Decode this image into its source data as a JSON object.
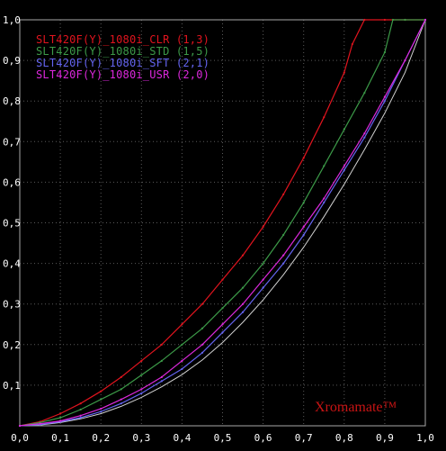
{
  "chart_data": {
    "type": "line",
    "title": "",
    "xlabel": "",
    "ylabel": "",
    "xlim": [
      0,
      1
    ],
    "ylim": [
      0,
      1
    ],
    "grid": true,
    "legend_placement": "top-left",
    "x_ticks": [
      "0,0",
      "0,1",
      "0,2",
      "0,3",
      "0,4",
      "0,5",
      "0,6",
      "0,7",
      "0,8",
      "0,9",
      "1,0"
    ],
    "y_ticks": [
      "0,1",
      "0,2",
      "0,3",
      "0,4",
      "0,5",
      "0,6",
      "0,7",
      "0,8",
      "0,9",
      "1,0"
    ],
    "series": [
      {
        "name": "SLT420F(Y)_1080i_CLR (1,3)",
        "color": "#e0141e",
        "x": [
          0,
          0.05,
          0.1,
          0.15,
          0.2,
          0.25,
          0.3,
          0.35,
          0.4,
          0.45,
          0.5,
          0.55,
          0.6,
          0.65,
          0.7,
          0.75,
          0.8,
          0.82,
          0.85,
          0.9,
          0.95,
          1.0
        ],
        "y": [
          0,
          0.01,
          0.03,
          0.055,
          0.085,
          0.12,
          0.16,
          0.2,
          0.25,
          0.3,
          0.36,
          0.42,
          0.49,
          0.57,
          0.66,
          0.76,
          0.87,
          0.94,
          1.0,
          1.0,
          1.0,
          1.0
        ]
      },
      {
        "name": "SLT420F(Y)_1080i_STD (1,5)",
        "color": "#3c9a48",
        "x": [
          0,
          0.05,
          0.1,
          0.15,
          0.2,
          0.25,
          0.3,
          0.35,
          0.4,
          0.45,
          0.5,
          0.55,
          0.6,
          0.65,
          0.7,
          0.75,
          0.8,
          0.85,
          0.9,
          0.92,
          0.95,
          1.0
        ],
        "y": [
          0,
          0.008,
          0.02,
          0.04,
          0.065,
          0.09,
          0.125,
          0.16,
          0.2,
          0.24,
          0.29,
          0.34,
          0.4,
          0.47,
          0.55,
          0.64,
          0.73,
          0.82,
          0.92,
          1.0,
          1.0,
          1.0
        ]
      },
      {
        "name": "SLT420F(Y)_1080i_SFT (2,1)",
        "color": "#6464f0",
        "x": [
          0,
          0.05,
          0.1,
          0.15,
          0.2,
          0.25,
          0.3,
          0.35,
          0.4,
          0.45,
          0.5,
          0.55,
          0.6,
          0.65,
          0.7,
          0.75,
          0.8,
          0.85,
          0.9,
          0.95,
          1.0
        ],
        "y": [
          0,
          0.003,
          0.01,
          0.02,
          0.035,
          0.055,
          0.08,
          0.11,
          0.14,
          0.18,
          0.23,
          0.28,
          0.34,
          0.4,
          0.47,
          0.55,
          0.63,
          0.71,
          0.8,
          0.9,
          1.0
        ]
      },
      {
        "name": "SLT420F(Y)_1080i_USR (2,0)",
        "color": "#dc28dc",
        "x": [
          0,
          0.05,
          0.1,
          0.15,
          0.2,
          0.25,
          0.3,
          0.35,
          0.4,
          0.45,
          0.5,
          0.55,
          0.6,
          0.65,
          0.7,
          0.75,
          0.8,
          0.85,
          0.9,
          0.95,
          1.0
        ],
        "y": [
          0,
          0.005,
          0.012,
          0.025,
          0.042,
          0.065,
          0.09,
          0.12,
          0.16,
          0.2,
          0.25,
          0.3,
          0.36,
          0.42,
          0.49,
          0.56,
          0.64,
          0.72,
          0.81,
          0.9,
          1.0
        ]
      }
    ],
    "reference": {
      "color": "#d2d2d2",
      "x": [
        0,
        0.05,
        0.1,
        0.15,
        0.2,
        0.25,
        0.3,
        0.35,
        0.4,
        0.45,
        0.5,
        0.55,
        0.6,
        0.65,
        0.7,
        0.75,
        0.8,
        0.85,
        0.9,
        0.95,
        1.0
      ],
      "y": [
        0,
        0.002,
        0.008,
        0.017,
        0.03,
        0.048,
        0.07,
        0.096,
        0.126,
        0.162,
        0.205,
        0.255,
        0.31,
        0.372,
        0.44,
        0.515,
        0.595,
        0.68,
        0.77,
        0.87,
        1.0
      ]
    }
  },
  "watermark": "Xromamate™"
}
